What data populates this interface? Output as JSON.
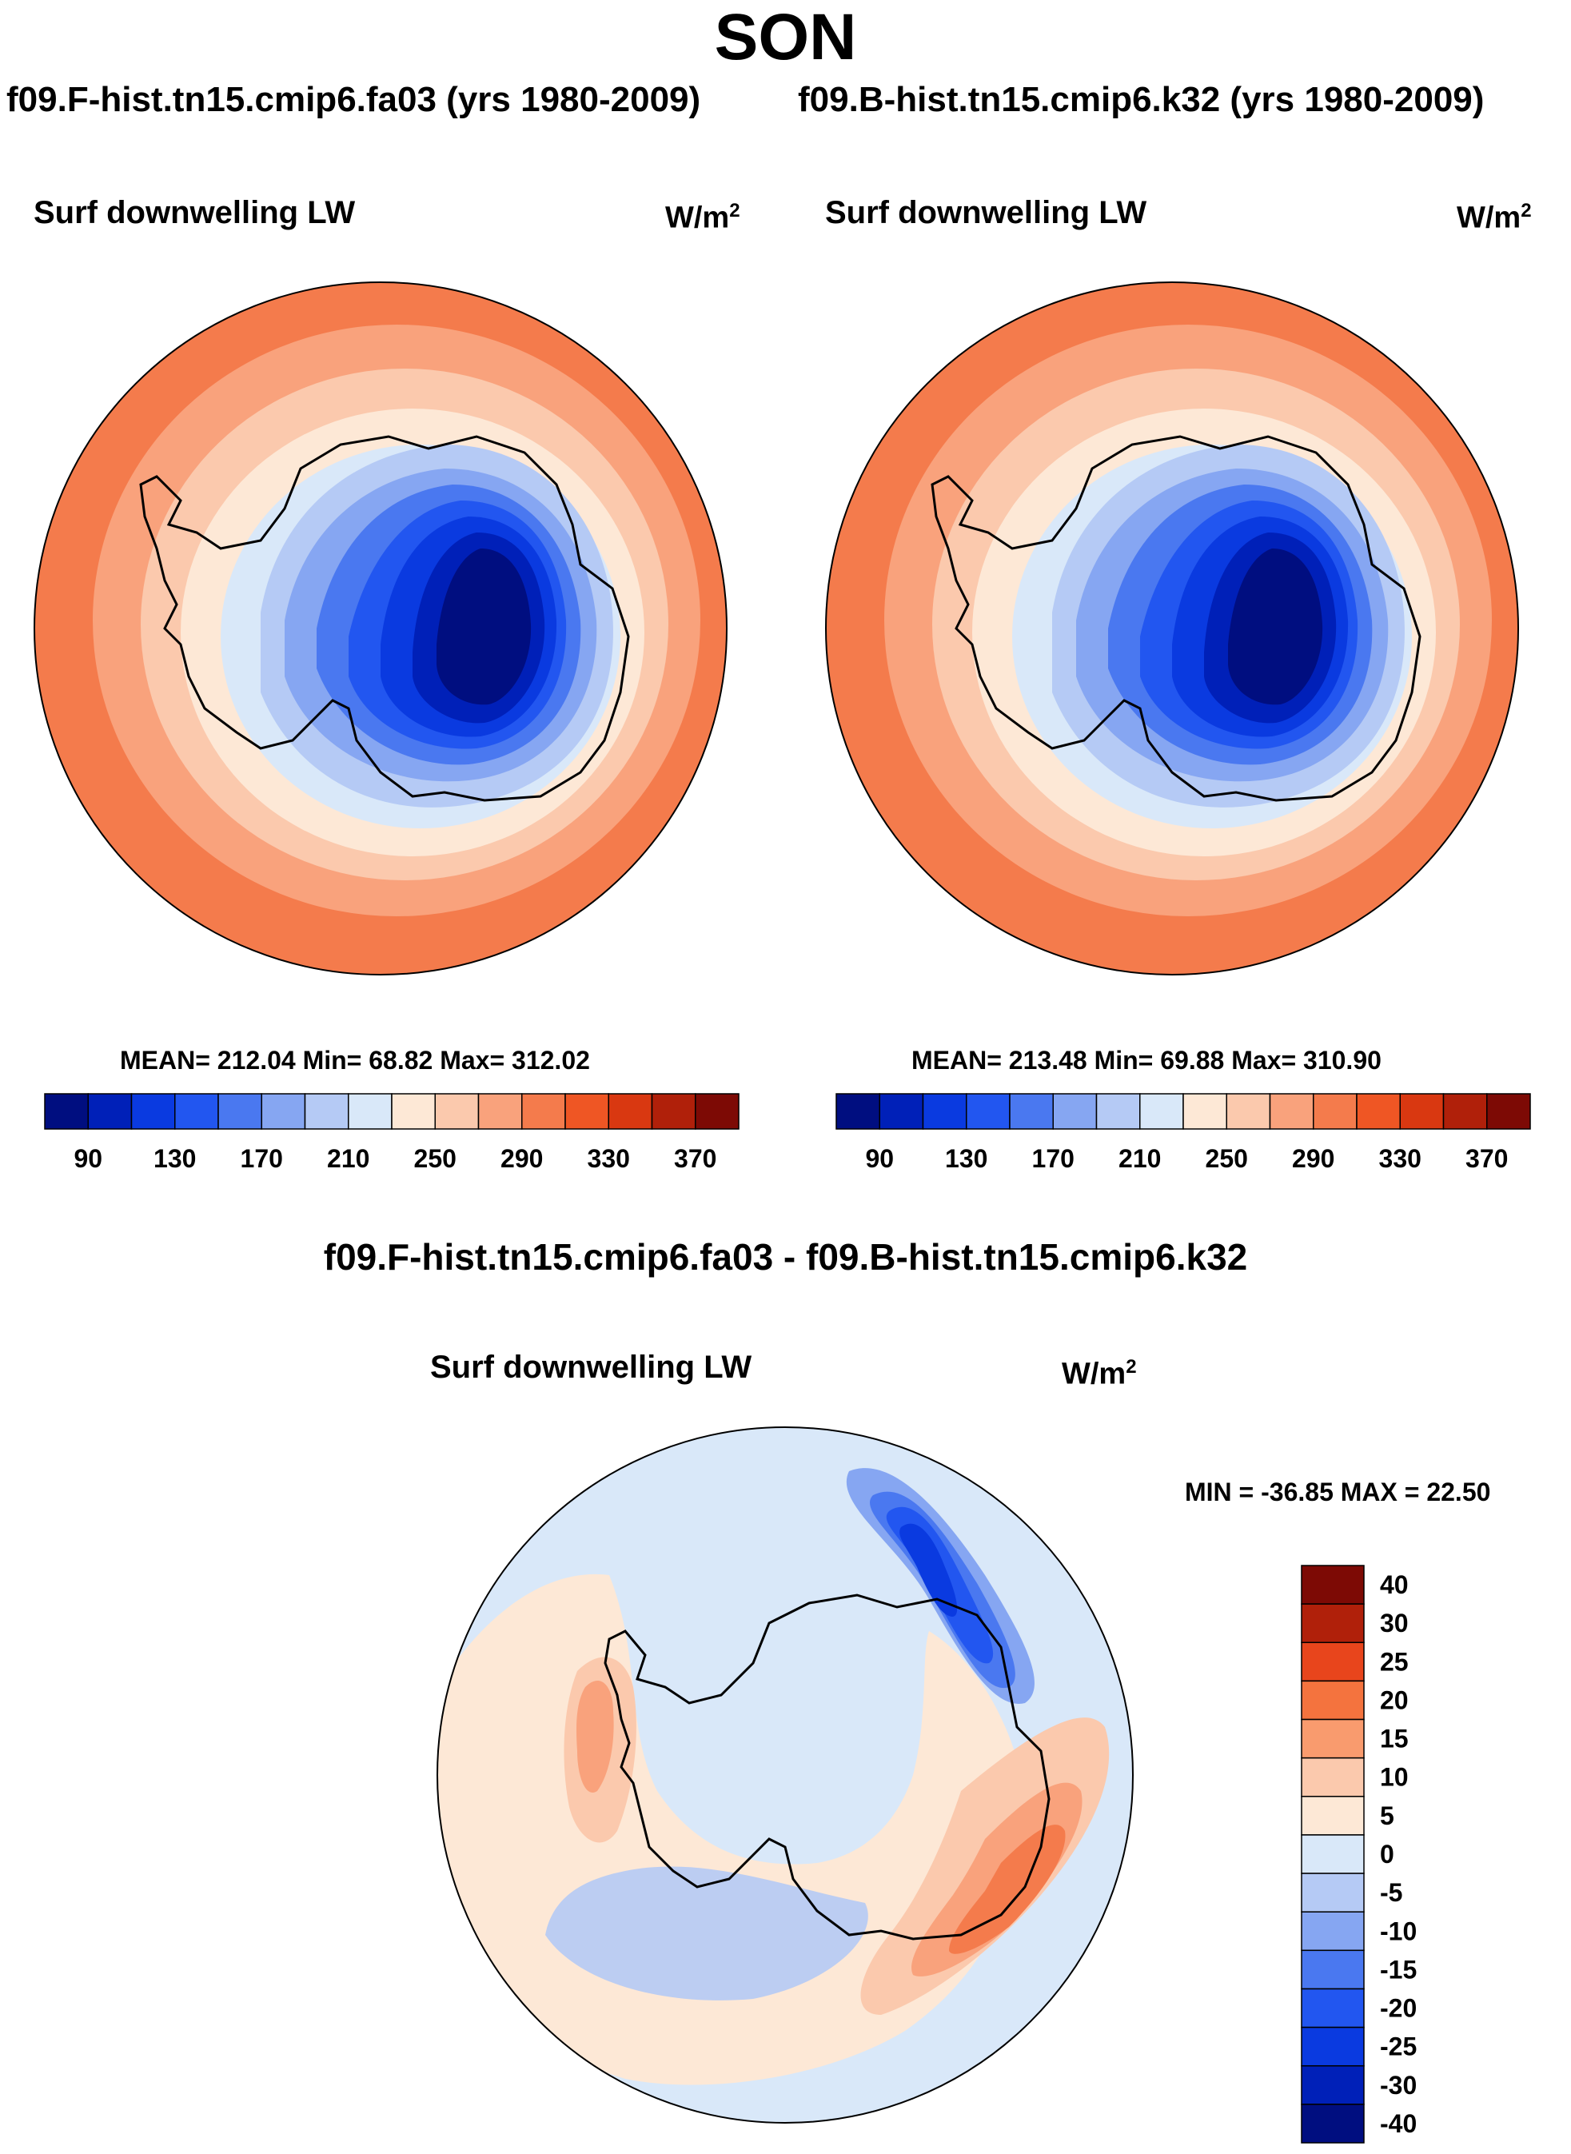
{
  "figure": {
    "season": "SON"
  },
  "panels": [
    {
      "case": "f09.F-hist.tn15.cmip6.fa03 (yrs 1980-2009)",
      "variable": "Surf downwelling LW",
      "units_base": "W/m",
      "units_exp": "2",
      "stats": "MEAN= 212.04  Min=  68.82  Max= 312.02"
    },
    {
      "case": "f09.B-hist.tn15.cmip6.k32 (yrs 1980-2009)",
      "variable": "Surf downwelling LW",
      "units_base": "W/m",
      "units_exp": "2",
      "stats": "MEAN= 213.48  Min=  69.88  Max= 310.90"
    }
  ],
  "difference": {
    "title": "f09.F-hist.tn15.cmip6.fa03 - f09.B-hist.tn15.cmip6.k32",
    "variable": "Surf downwelling LW",
    "units_base": "W/m",
    "units_exp": "2",
    "stats": "MIN = -36.85 MAX =  22.50"
  },
  "colorbars": {
    "absolute": {
      "colors": [
        "#000e80",
        "#0020b8",
        "#0a3ae0",
        "#2256f0",
        "#4a78f0",
        "#86a6f2",
        "#b5caf5",
        "#d9e8f9",
        "#fde8d6",
        "#fbc9ad",
        "#f9a27c",
        "#f47b4c",
        "#ef5624",
        "#d93811",
        "#b0200a",
        "#7d0a05"
      ],
      "labels": [
        "90",
        "130",
        "170",
        "210",
        "250",
        "290",
        "330",
        "370"
      ]
    },
    "difference": {
      "colors": [
        "#7d0a05",
        "#b0200a",
        "#e8451c",
        "#f4733e",
        "#f99b6e",
        "#fbc9ad",
        "#fde8d6",
        "#d9e8f9",
        "#b5caf5",
        "#86a6f2",
        "#4a78f0",
        "#2256f0",
        "#0a3ae0",
        "#0020b8",
        "#000e80"
      ],
      "labels": [
        "40",
        "30",
        "25",
        "20",
        "15",
        "10",
        "5",
        "0",
        "-5",
        "-10",
        "-15",
        "-20",
        "-25",
        "-30",
        "-40"
      ]
    }
  }
}
